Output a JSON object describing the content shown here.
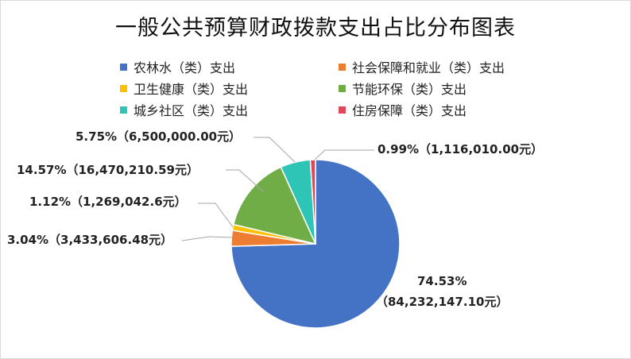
{
  "title": "一般公共预算财政拨款支出占比分布图表",
  "chart_data": {
    "type": "pie",
    "title": "一般公共预算财政拨款支出占比分布图表",
    "legend_position": "top",
    "series": [
      {
        "name": "农林水（类）支出",
        "value": 84232147.1,
        "percent_label": "74.53%",
        "value_label": "（84,232,147.10元）",
        "color": "#4472C4"
      },
      {
        "name": "社会保障和就业（类）支出",
        "value": 3433606.48,
        "percent_label": "3.04%",
        "value_label": "（3,433,606.48元）",
        "color": "#ED7D31"
      },
      {
        "name": "卫生健康（类）支出",
        "value": 1269042.6,
        "percent_label": "1.12%",
        "value_label": "（1,269,042.6元）",
        "color": "#FFC000"
      },
      {
        "name": "节能环保（类）支出",
        "value": 16470210.59,
        "percent_label": "14.57%",
        "value_label": "（16,470,210.59元）",
        "color": "#70AD47"
      },
      {
        "name": "城乡社区（类）支出",
        "value": 6500000.0,
        "percent_label": "5.75%",
        "value_label": "（6,500,000.00元）",
        "color": "#2EC4B6"
      },
      {
        "name": "住房保障（类）支出",
        "value": 1116010.0,
        "percent_label": "0.99%",
        "value_label": "（1,116,010.00元）",
        "color": "#E0475B"
      }
    ]
  }
}
